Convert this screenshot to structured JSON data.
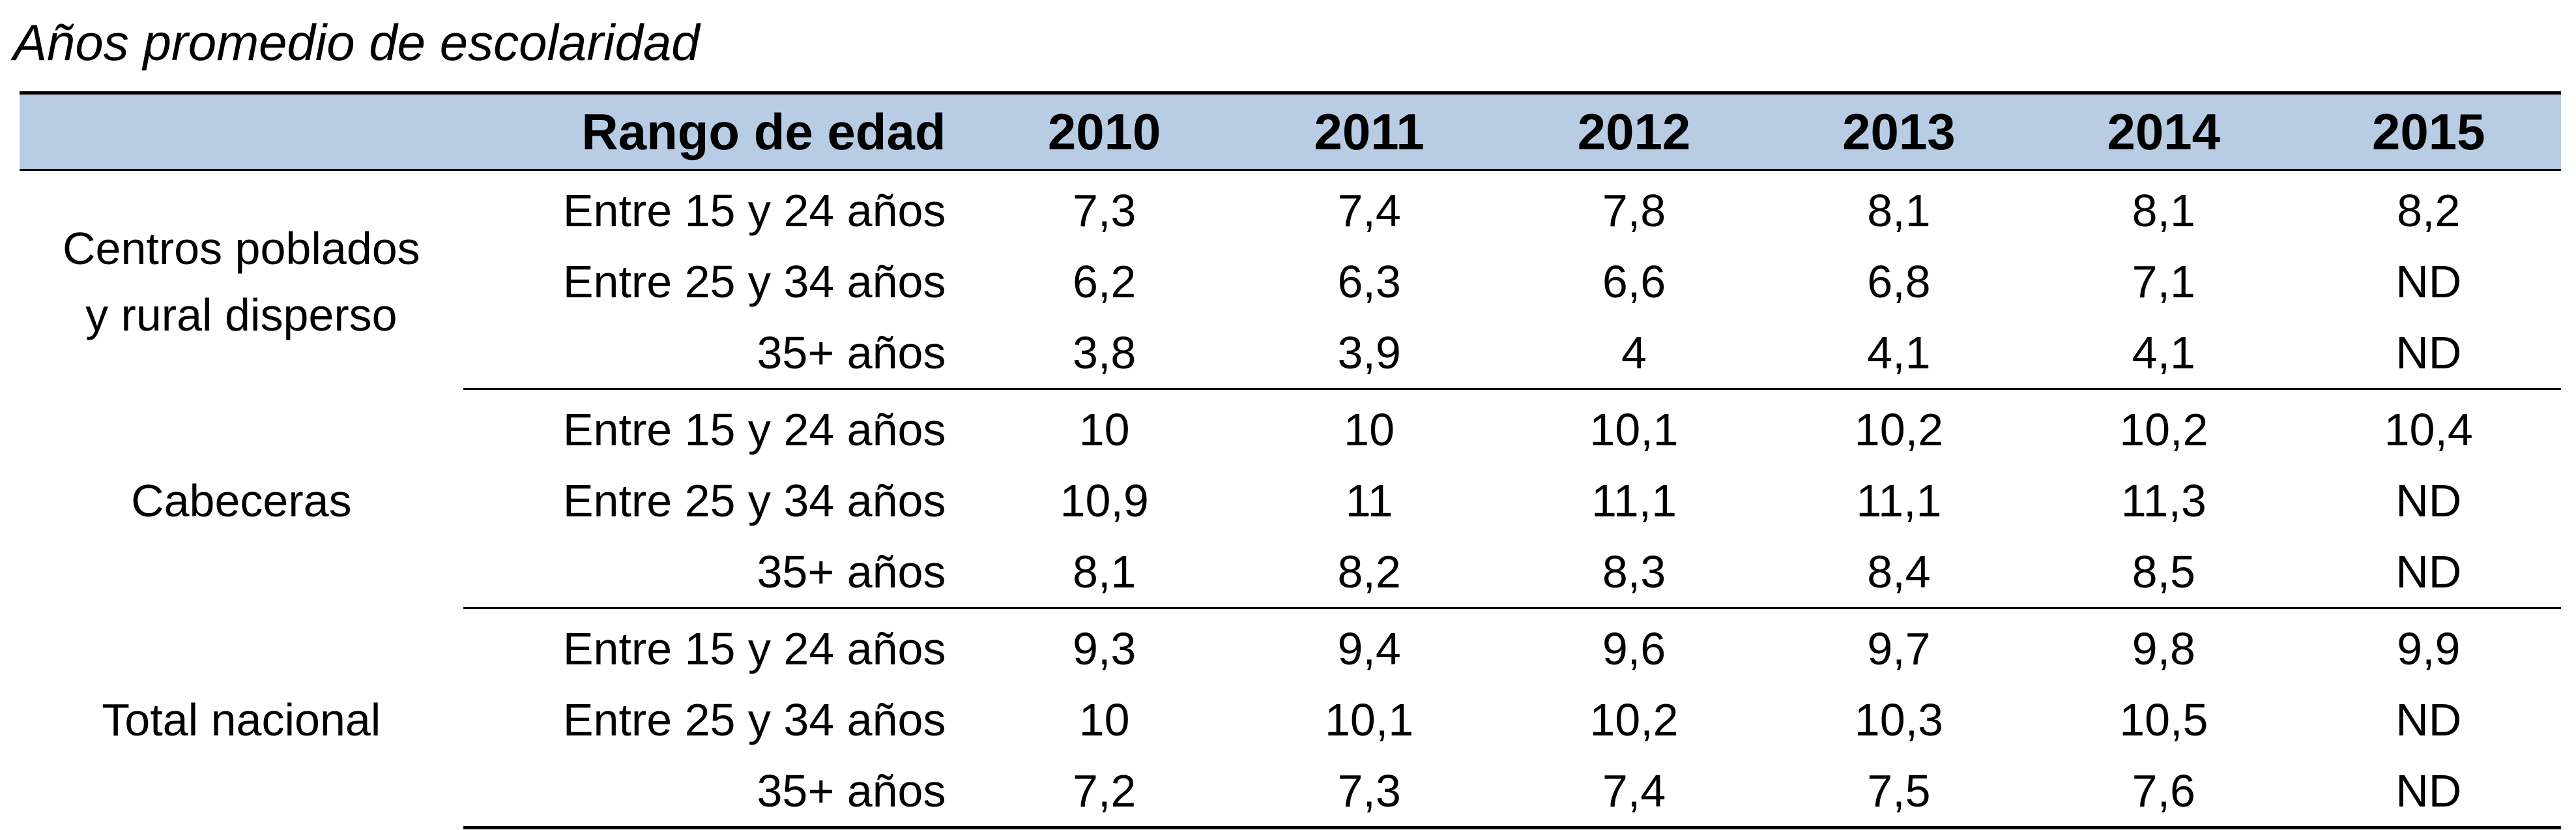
{
  "title": "Años promedio de escolaridad",
  "header": {
    "group": "",
    "range": "Rango de edad",
    "years": [
      "2010",
      "2011",
      "2012",
      "2013",
      "2014",
      "2015"
    ]
  },
  "groups": [
    {
      "name": "Centros poblados y rural disperso",
      "rows": [
        {
          "range": "Entre 15 y 24 años",
          "values": [
            "7,3",
            "7,4",
            "7,8",
            "8,1",
            "8,1",
            "8,2"
          ]
        },
        {
          "range": "Entre 25 y 34 años",
          "values": [
            "6,2",
            "6,3",
            "6,6",
            "6,8",
            "7,1",
            "ND"
          ]
        },
        {
          "range": "35+ años",
          "values": [
            "3,8",
            "3,9",
            "4",
            "4,1",
            "4,1",
            "ND"
          ]
        }
      ]
    },
    {
      "name": "Cabeceras",
      "rows": [
        {
          "range": "Entre 15 y 24 años",
          "values": [
            "10",
            "10",
            "10,1",
            "10,2",
            "10,2",
            "10,4"
          ]
        },
        {
          "range": "Entre 25 y 34 años",
          "values": [
            "10,9",
            "11",
            "11,1",
            "11,1",
            "11,3",
            "ND"
          ]
        },
        {
          "range": "35+ años",
          "values": [
            "8,1",
            "8,2",
            "8,3",
            "8,4",
            "8,5",
            "ND"
          ]
        }
      ]
    },
    {
      "name": "Total nacional",
      "rows": [
        {
          "range": "Entre 15 y 24 años",
          "values": [
            "9,3",
            "9,4",
            "9,6",
            "9,7",
            "9,8",
            "9,9"
          ]
        },
        {
          "range": "Entre 25 y 34 años",
          "values": [
            "10",
            "10,1",
            "10,2",
            "10,3",
            "10,5",
            "ND"
          ]
        },
        {
          "range": "35+ años",
          "values": [
            "7,2",
            "7,3",
            "7,4",
            "7,5",
            "7,6",
            "ND"
          ]
        }
      ]
    }
  ],
  "colors": {
    "header_background": "#b8cce4",
    "rule": "#000000",
    "text": "#000000"
  }
}
